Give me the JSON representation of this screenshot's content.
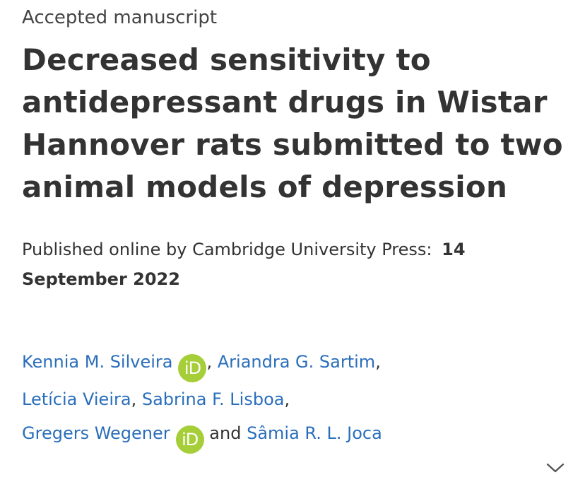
{
  "article": {
    "status": "Accepted manuscript",
    "title": "Decreased sensitivity to antidepressant drugs in Wistar Hannover rats submitted to two animal models of depression",
    "published_prefix": "Published online by Cambridge University Press:",
    "published_date": "14 September 2022"
  },
  "authors": [
    {
      "name": "Kennia M. Silveira",
      "orcid": "iD",
      "after": ", "
    },
    {
      "name": "Ariandra G. Sartim",
      "after": ","
    },
    {
      "name": "Letícia Vieira",
      "after": ", "
    },
    {
      "name": "Sabrina F. Lisboa",
      "after": ","
    },
    {
      "name": "Gregers Wegener",
      "orcid": "iD",
      "after": "and"
    },
    {
      "name": "Sâmia R. L. Joca"
    }
  ],
  "colors": {
    "link": "#2a6ebb",
    "orcid": "#a6ce39",
    "text": "#333333"
  },
  "icons": {
    "orcid": "orcid-icon",
    "expand": "chevron-down-icon"
  }
}
